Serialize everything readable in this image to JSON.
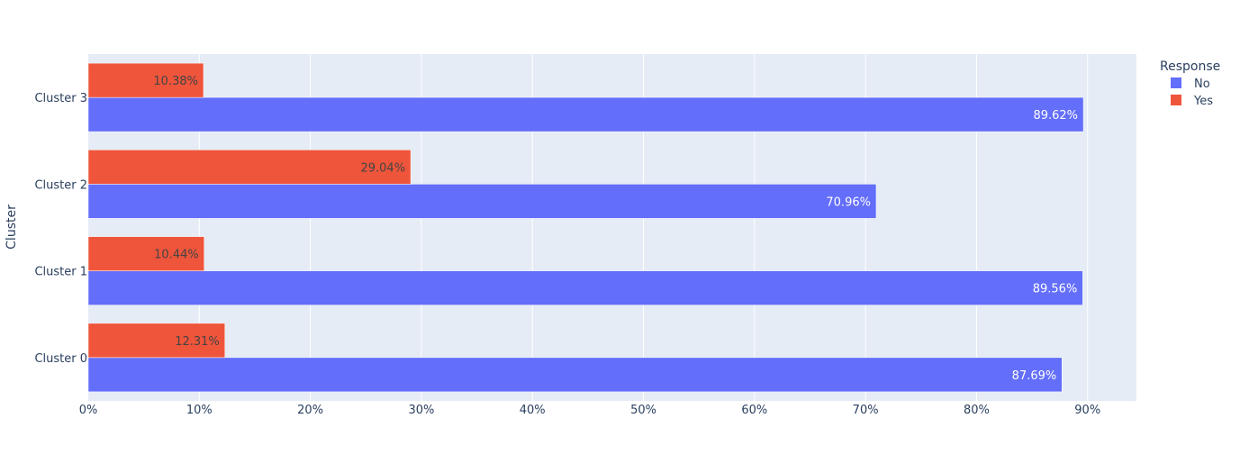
{
  "chart_data": {
    "type": "bar",
    "orientation": "horizontal",
    "barmode": "group",
    "categories": [
      "Cluster 0",
      "Cluster 1",
      "Cluster 2",
      "Cluster 3"
    ],
    "series": [
      {
        "name": "No",
        "color": "#636efa",
        "values": [
          87.69,
          89.56,
          70.96,
          89.62
        ],
        "labels": [
          "87.69%",
          "89.56%",
          "70.96%",
          "89.62%"
        ],
        "label_color": "#ffffff"
      },
      {
        "name": "Yes",
        "color": "#ef553b",
        "values": [
          12.31,
          10.44,
          29.04,
          10.38
        ],
        "labels": [
          "12.31%",
          "10.44%",
          "29.04%",
          "10.38%"
        ],
        "label_color": "#444444"
      }
    ],
    "xlim": [
      0,
      94.4
    ],
    "xticks": [
      0,
      10,
      20,
      30,
      40,
      50,
      60,
      70,
      80,
      90
    ],
    "xtick_labels": [
      "0%",
      "10%",
      "20%",
      "30%",
      "40%",
      "50%",
      "60%",
      "70%",
      "80%",
      "90%"
    ],
    "ylabel": "Cluster",
    "legend_title": "Response",
    "legend_position": "top-right",
    "grid": true,
    "plot_bgcolor": "#e5ecf6",
    "grid_color": "#ffffff"
  }
}
